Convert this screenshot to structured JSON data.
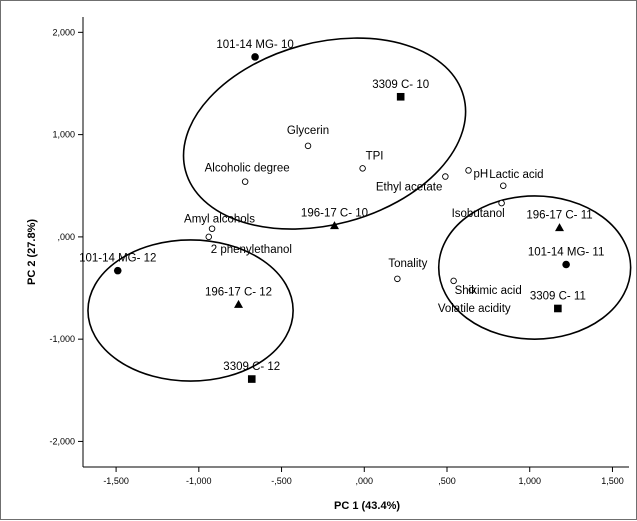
{
  "chart_data": {
    "type": "scatter",
    "xlabel": "PC 1 (43.4%)",
    "ylabel": "PC 2 (27.8%)",
    "xlim": [
      -1.7,
      1.6
    ],
    "ylim": [
      -2.25,
      2.15
    ],
    "xticks": [
      {
        "value": -1.5,
        "label": "-1,500"
      },
      {
        "value": -1.0,
        "label": "-1,000"
      },
      {
        "value": -0.5,
        "label": "-,500"
      },
      {
        "value": 0.0,
        "label": ",000"
      },
      {
        "value": 0.5,
        "label": ",500"
      },
      {
        "value": 1.0,
        "label": "1,000"
      },
      {
        "value": 1.5,
        "label": "1,500"
      }
    ],
    "yticks": [
      {
        "value": 2.0,
        "label": "2,000"
      },
      {
        "value": 1.0,
        "label": "1,000"
      },
      {
        "value": 0.0,
        "label": ",000"
      },
      {
        "value": -1.0,
        "label": "-1,000"
      },
      {
        "value": -2.0,
        "label": "-2,000"
      }
    ],
    "points": [
      {
        "label": "101-14 MG- 10",
        "x": -0.66,
        "y": 1.76,
        "marker": "filled-circle"
      },
      {
        "label": "3309 C- 10",
        "x": 0.22,
        "y": 1.37,
        "marker": "filled-square"
      },
      {
        "label": "196-17 C- 10",
        "x": -0.18,
        "y": 0.11,
        "marker": "filled-triangle"
      },
      {
        "label": "101-14 MG- 12",
        "x": -1.49,
        "y": -0.33,
        "marker": "filled-circle"
      },
      {
        "label": "196-17 C- 12",
        "x": -0.76,
        "y": -0.66,
        "marker": "filled-triangle"
      },
      {
        "label": "3309 C- 12",
        "x": -0.68,
        "y": -1.39,
        "marker": "filled-square"
      },
      {
        "label": "196-17 C- 11",
        "x": 1.18,
        "y": 0.09,
        "marker": "filled-triangle"
      },
      {
        "label": "101-14 MG- 11",
        "x": 1.22,
        "y": -0.27,
        "marker": "filled-circle"
      },
      {
        "label": "3309 C- 11",
        "x": 1.17,
        "y": -0.7,
        "marker": "filled-square"
      },
      {
        "label": "Glycerin",
        "x": -0.34,
        "y": 0.89,
        "marker": "open-circle"
      },
      {
        "label": "TPI",
        "x": -0.01,
        "y": 0.67,
        "marker": "open-circle"
      },
      {
        "label": "Alcoholic degree",
        "x": -0.72,
        "y": 0.54,
        "marker": "open-circle"
      },
      {
        "label": "Ethyl acetate",
        "x": 0.49,
        "y": 0.59,
        "marker": "open-circle"
      },
      {
        "label": "pH",
        "x": 0.63,
        "y": 0.65,
        "marker": "open-circle"
      },
      {
        "label": "Lactic acid",
        "x": 0.84,
        "y": 0.5,
        "marker": "open-circle"
      },
      {
        "label": "Isobutanol",
        "x": 0.83,
        "y": 0.33,
        "marker": "open-circle"
      },
      {
        "label": "Amyl alcohols",
        "x": -0.92,
        "y": 0.08,
        "marker": "open-circle"
      },
      {
        "label": "2 phenylethanol",
        "x": -0.94,
        "y": 0.0,
        "marker": "open-circle"
      },
      {
        "label": "Tonality",
        "x": 0.2,
        "y": -0.41,
        "marker": "open-circle"
      },
      {
        "label": "Shikimic acid",
        "x": 0.54,
        "y": -0.43,
        "marker": "open-circle"
      },
      {
        "label": "Volatile acidity",
        "x": 0.65,
        "y": -0.52,
        "marker": "open-circle"
      }
    ],
    "ellipses": [
      {
        "group": "10",
        "cx": -0.24,
        "cy": 1.01,
        "rx": 0.87,
        "ry": 0.89,
        "rotation_deg": -15
      },
      {
        "group": "12",
        "cx": -1.05,
        "cy": -0.72,
        "rx": 0.62,
        "ry": 0.69,
        "rotation_deg": 0
      },
      {
        "group": "11",
        "cx": 1.03,
        "cy": -0.3,
        "rx": 0.58,
        "ry": 0.7,
        "rotation_deg": 0
      }
    ]
  }
}
